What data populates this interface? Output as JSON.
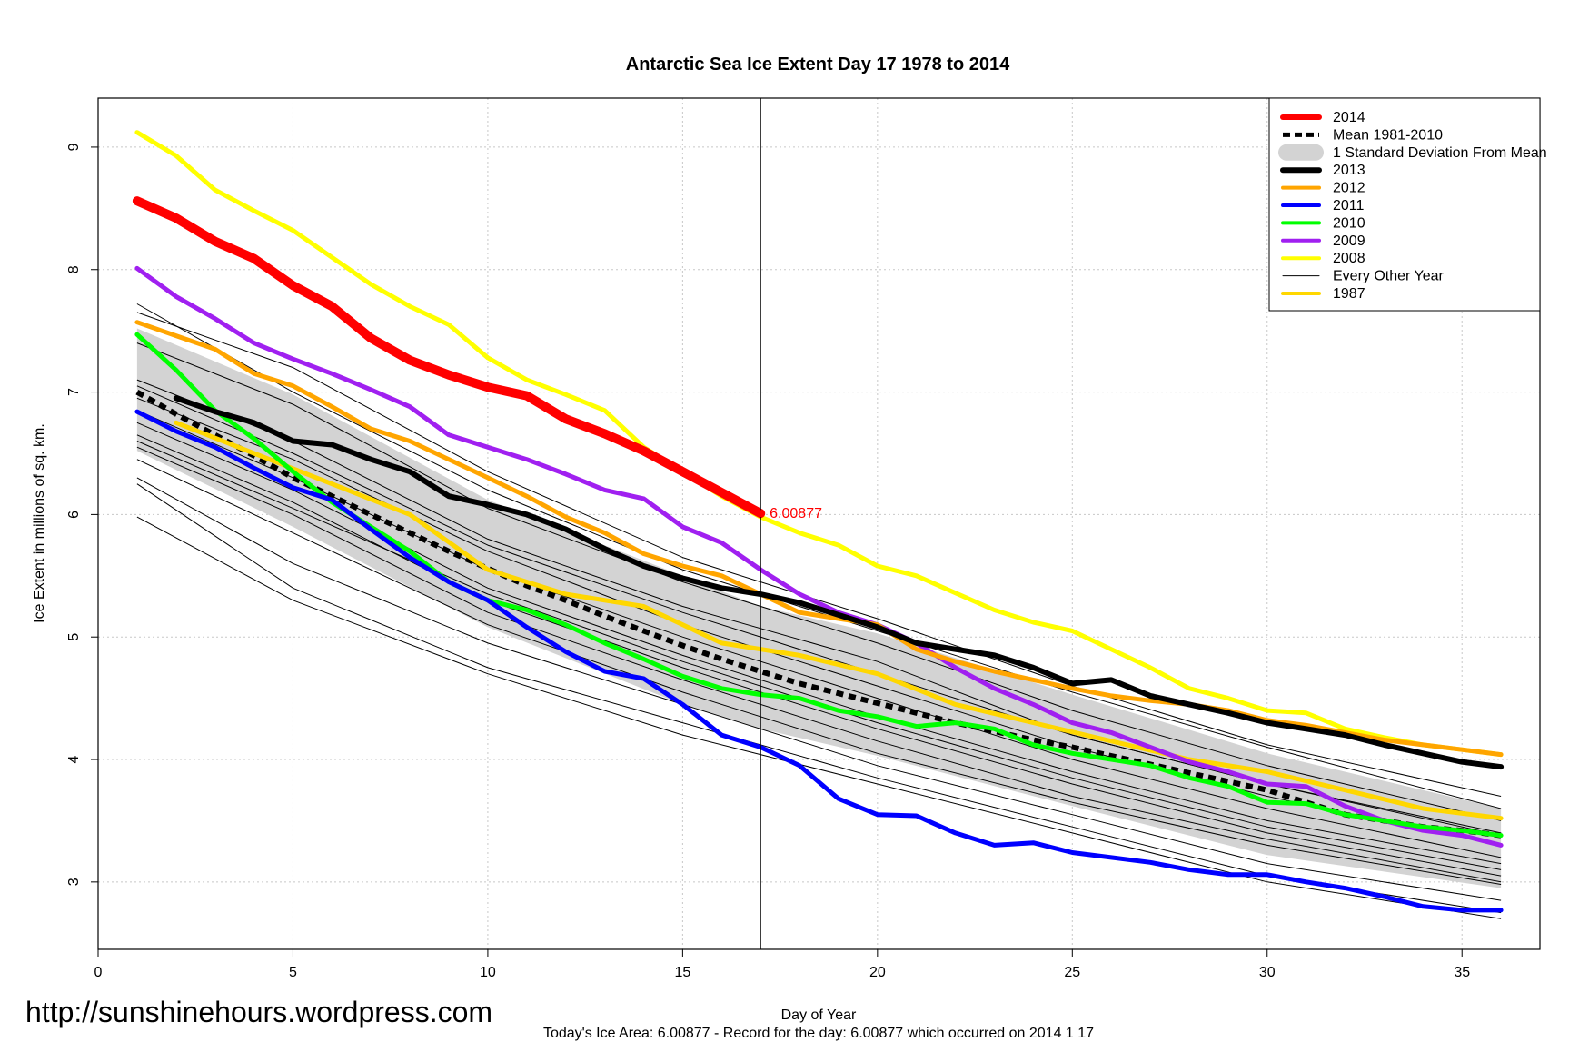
{
  "chart_data": {
    "type": "line",
    "title": "Antarctic Sea Ice Extent Day 17 1978 to 2014",
    "xlabel": "Day of Year",
    "ylabel": "Ice Extent in millions of sq. km.",
    "subtitle": "Today's Ice Area: 6.00877  - Record for the day: 6.00877 which occurred on 2014 1 17",
    "watermark": "http://sunshinehours.wordpress.com",
    "xlim": [
      0,
      37
    ],
    "ylim": [
      2.45,
      9.4
    ],
    "x_ticks": [
      0,
      5,
      10,
      15,
      20,
      25,
      30,
      35
    ],
    "y_ticks": [
      3,
      4,
      5,
      6,
      7,
      8,
      9
    ],
    "grid": true,
    "vline_day": 17,
    "annotation": {
      "text": "6.00877",
      "x": 17,
      "y": 6.00877,
      "color": "#ff0000"
    },
    "legend_position": "top-right",
    "legend": [
      {
        "label": "2014",
        "color": "#ff0000",
        "style": "thick"
      },
      {
        "label": "Mean 1981-2010",
        "color": "#000000",
        "style": "dashed"
      },
      {
        "label": "1 Standard Deviation From Mean",
        "color": "#d3d3d3",
        "style": "band"
      },
      {
        "label": "2013",
        "color": "#000000",
        "style": "thick"
      },
      {
        "label": "2012",
        "color": "#ffa500",
        "style": "medium"
      },
      {
        "label": "2011",
        "color": "#0000ff",
        "style": "medium"
      },
      {
        "label": "2010",
        "color": "#00ff00",
        "style": "medium"
      },
      {
        "label": "2009",
        "color": "#a020f0",
        "style": "medium"
      },
      {
        "label": "2008",
        "color": "#ffff00",
        "style": "medium"
      },
      {
        "label": "Every Other Year",
        "color": "#000000",
        "style": "thin"
      },
      {
        "label": "1987",
        "color": "#ffd700",
        "style": "medium"
      }
    ],
    "sd_band": {
      "x": [
        1,
        5,
        10,
        15,
        17,
        20,
        25,
        30,
        36
      ],
      "upper": [
        7.52,
        6.98,
        6.12,
        5.5,
        5.25,
        5.03,
        4.53,
        4.05,
        3.6
      ],
      "lower": [
        6.52,
        5.9,
        5.08,
        4.45,
        4.25,
        4.03,
        3.62,
        3.22,
        2.95
      ]
    },
    "thin_years": [
      {
        "x": [
          1,
          5,
          10,
          15,
          20,
          25,
          30,
          36
        ],
        "values": [
          7.72,
          7.0,
          6.2,
          5.55,
          5.05,
          4.55,
          4.1,
          3.6
        ]
      },
      {
        "x": [
          1,
          5,
          10,
          15,
          20,
          25,
          30,
          36
        ],
        "values": [
          7.65,
          7.2,
          6.35,
          5.65,
          5.15,
          4.6,
          4.12,
          3.7
        ]
      },
      {
        "x": [
          1,
          5,
          10,
          15,
          20,
          25,
          30,
          36
        ],
        "values": [
          7.4,
          6.9,
          6.05,
          5.45,
          4.95,
          4.4,
          3.95,
          3.5
        ]
      },
      {
        "x": [
          1,
          5,
          10,
          15,
          20,
          25,
          30,
          36
        ],
        "values": [
          7.1,
          6.6,
          5.8,
          5.25,
          4.8,
          4.2,
          3.8,
          3.4
        ]
      },
      {
        "x": [
          1,
          5,
          10,
          15,
          20,
          25,
          30,
          36
        ],
        "values": [
          6.95,
          6.45,
          5.7,
          5.1,
          4.6,
          4.1,
          3.7,
          3.3
        ]
      },
      {
        "x": [
          1,
          5,
          10,
          15,
          20,
          25,
          30,
          36
        ],
        "values": [
          6.85,
          6.3,
          5.55,
          5.0,
          4.5,
          4.0,
          3.6,
          3.2
        ]
      },
      {
        "x": [
          1,
          5,
          10,
          15,
          20,
          25,
          30,
          36
        ],
        "values": [
          6.75,
          6.2,
          5.4,
          4.85,
          4.35,
          3.9,
          3.5,
          3.15
        ]
      },
      {
        "x": [
          1,
          5,
          10,
          15,
          20,
          25,
          30,
          36
        ],
        "values": [
          6.65,
          6.1,
          5.3,
          4.75,
          4.25,
          3.8,
          3.4,
          3.05
        ]
      },
      {
        "x": [
          1,
          5,
          10,
          15,
          20,
          25,
          30,
          36
        ],
        "values": [
          6.55,
          6.0,
          5.2,
          4.65,
          4.15,
          3.7,
          3.35,
          3.0
        ]
      },
      {
        "x": [
          1,
          5,
          10,
          15,
          20,
          25,
          30,
          36
        ],
        "values": [
          6.45,
          5.85,
          5.1,
          4.55,
          4.05,
          3.65,
          3.3,
          2.98
        ]
      },
      {
        "x": [
          1,
          5,
          10,
          15,
          20,
          25,
          30,
          36
        ],
        "values": [
          6.3,
          5.6,
          4.95,
          4.45,
          3.95,
          3.55,
          3.15,
          2.85
        ]
      },
      {
        "x": [
          1,
          5,
          10,
          15,
          20,
          25,
          30,
          36
        ],
        "values": [
          6.25,
          5.4,
          4.75,
          4.3,
          3.85,
          3.45,
          3.05,
          2.75
        ]
      },
      {
        "x": [
          1,
          5,
          10,
          15,
          20,
          25,
          30,
          36
        ],
        "values": [
          5.98,
          5.3,
          4.7,
          4.2,
          3.8,
          3.4,
          3.0,
          2.7
        ]
      },
      {
        "x": [
          1,
          5,
          10,
          15,
          20,
          25,
          30,
          36
        ],
        "values": [
          7.05,
          6.5,
          5.75,
          5.2,
          4.7,
          4.2,
          3.8,
          3.38
        ]
      },
      {
        "x": [
          1,
          5,
          10,
          15,
          20,
          25,
          30,
          36
        ],
        "values": [
          6.6,
          6.05,
          5.35,
          4.8,
          4.3,
          3.85,
          3.45,
          3.1
        ]
      }
    ],
    "series": [
      {
        "name": "Mean 1981-2010",
        "color": "#000000",
        "width": 6,
        "dash": "8,6",
        "x": [
          1,
          2,
          3,
          4,
          5,
          6,
          7,
          8,
          9,
          10,
          11,
          12,
          13,
          14,
          15,
          16,
          17,
          18,
          19,
          20,
          21,
          22,
          23,
          24,
          25,
          26,
          27,
          28,
          29,
          30,
          31,
          32,
          33,
          34,
          35,
          36
        ],
        "values": [
          7.0,
          6.82,
          6.65,
          6.48,
          6.3,
          6.15,
          6.0,
          5.85,
          5.7,
          5.56,
          5.42,
          5.3,
          5.17,
          5.05,
          4.93,
          4.82,
          4.72,
          4.62,
          4.54,
          4.46,
          4.38,
          4.3,
          4.23,
          4.16,
          4.1,
          4.03,
          3.96,
          3.89,
          3.82,
          3.75,
          3.65,
          3.55,
          3.5,
          3.45,
          3.42,
          3.38
        ]
      },
      {
        "name": "1987",
        "color": "#ffd700",
        "width": 5,
        "x": [
          2,
          4,
          6,
          8,
          10,
          12,
          14,
          16,
          18,
          20,
          22,
          24,
          26,
          28,
          30,
          32,
          34,
          36
        ],
        "values": [
          6.75,
          6.5,
          6.25,
          6.0,
          5.55,
          5.35,
          5.25,
          4.95,
          4.85,
          4.7,
          4.45,
          4.3,
          4.15,
          4.0,
          3.9,
          3.75,
          3.6,
          3.52
        ]
      },
      {
        "name": "2008",
        "color": "#ffff00",
        "width": 5,
        "x": [
          1,
          2,
          3,
          4,
          5,
          6,
          7,
          8,
          9,
          10,
          11,
          12,
          13,
          14,
          15,
          16,
          17,
          18,
          19,
          20,
          21,
          22,
          23,
          24,
          25,
          26,
          27,
          28,
          29,
          30,
          31,
          32,
          33,
          34,
          35,
          36
        ],
        "values": [
          9.12,
          8.93,
          8.65,
          8.48,
          8.32,
          8.1,
          7.88,
          7.7,
          7.55,
          7.28,
          7.1,
          6.98,
          6.85,
          6.55,
          6.35,
          6.15,
          5.98,
          5.85,
          5.75,
          5.58,
          5.5,
          5.36,
          5.22,
          5.12,
          5.05,
          4.9,
          4.75,
          4.58,
          4.5,
          4.4,
          4.38,
          4.25,
          4.18,
          4.12,
          4.08,
          4.04
        ]
      },
      {
        "name": "2009",
        "color": "#a020f0",
        "width": 5,
        "x": [
          1,
          2,
          3,
          4,
          5,
          6,
          7,
          8,
          9,
          10,
          11,
          12,
          13,
          14,
          15,
          16,
          17,
          18,
          19,
          20,
          21,
          22,
          23,
          24,
          25,
          26,
          27,
          28,
          29,
          30,
          31,
          32,
          33,
          34,
          35,
          36
        ],
        "values": [
          8.01,
          7.78,
          7.6,
          7.4,
          7.27,
          7.15,
          7.02,
          6.88,
          6.65,
          6.55,
          6.45,
          6.33,
          6.2,
          6.13,
          5.9,
          5.77,
          5.55,
          5.35,
          5.2,
          5.1,
          4.95,
          4.75,
          4.58,
          4.45,
          4.3,
          4.22,
          4.1,
          3.98,
          3.9,
          3.8,
          3.78,
          3.62,
          3.5,
          3.42,
          3.38,
          3.3
        ]
      },
      {
        "name": "2010",
        "color": "#00ff00",
        "width": 5,
        "x": [
          1,
          2,
          3,
          4,
          5,
          6,
          7,
          8,
          9,
          10,
          11,
          12,
          13,
          14,
          15,
          16,
          17,
          18,
          19,
          20,
          21,
          22,
          23,
          24,
          25,
          26,
          27,
          28,
          29,
          30,
          31,
          32,
          33,
          34,
          35,
          36
        ],
        "values": [
          7.47,
          7.18,
          6.85,
          6.62,
          6.35,
          6.1,
          5.9,
          5.7,
          5.45,
          5.3,
          5.22,
          5.1,
          4.95,
          4.82,
          4.68,
          4.58,
          4.53,
          4.5,
          4.4,
          4.35,
          4.27,
          4.3,
          4.25,
          4.12,
          4.05,
          4.0,
          3.95,
          3.85,
          3.78,
          3.65,
          3.64,
          3.55,
          3.5,
          3.45,
          3.42,
          3.38
        ]
      },
      {
        "name": "2011",
        "color": "#0000ff",
        "width": 5,
        "x": [
          1,
          2,
          3,
          4,
          5,
          6,
          7,
          8,
          9,
          10,
          11,
          12,
          13,
          14,
          15,
          16,
          17,
          18,
          19,
          20,
          21,
          22,
          23,
          24,
          25,
          26,
          27,
          28,
          29,
          30,
          31,
          32,
          33,
          34,
          35,
          36
        ],
        "values": [
          6.84,
          6.68,
          6.55,
          6.38,
          6.22,
          6.12,
          5.88,
          5.65,
          5.45,
          5.3,
          5.08,
          4.88,
          4.72,
          4.66,
          4.45,
          4.2,
          4.1,
          3.95,
          3.68,
          3.55,
          3.54,
          3.4,
          3.3,
          3.32,
          3.24,
          3.2,
          3.16,
          3.1,
          3.06,
          3.06,
          3.0,
          2.95,
          2.88,
          2.8,
          2.77,
          2.77
        ]
      },
      {
        "name": "2012",
        "color": "#ffa500",
        "width": 5,
        "x": [
          1,
          2,
          3,
          4,
          5,
          6,
          7,
          8,
          9,
          10,
          11,
          12,
          13,
          14,
          15,
          16,
          17,
          18,
          19,
          20,
          21,
          22,
          23,
          24,
          25,
          26,
          27,
          28,
          29,
          30,
          31,
          32,
          33,
          34,
          35,
          36
        ],
        "values": [
          7.57,
          7.46,
          7.35,
          7.15,
          7.05,
          6.88,
          6.7,
          6.6,
          6.45,
          6.3,
          6.15,
          5.98,
          5.85,
          5.68,
          5.58,
          5.5,
          5.35,
          5.2,
          5.15,
          5.1,
          4.9,
          4.8,
          4.72,
          4.65,
          4.58,
          4.52,
          4.48,
          4.45,
          4.4,
          4.32,
          4.28,
          4.22,
          4.16,
          4.12,
          4.08,
          4.04
        ]
      },
      {
        "name": "2013",
        "color": "#000000",
        "width": 6,
        "x": [
          2,
          3,
          4,
          5,
          6,
          7,
          8,
          9,
          10,
          11,
          12,
          13,
          14,
          15,
          16,
          17,
          18,
          19,
          20,
          21,
          22,
          23,
          24,
          25,
          26,
          27,
          28,
          29,
          30,
          31,
          32,
          33,
          34,
          35,
          36
        ],
        "values": [
          6.95,
          6.84,
          6.75,
          6.6,
          6.57,
          6.45,
          6.35,
          6.15,
          6.08,
          6.0,
          5.88,
          5.72,
          5.58,
          5.48,
          5.4,
          5.35,
          5.28,
          5.18,
          5.08,
          4.95,
          4.9,
          4.85,
          4.75,
          4.62,
          4.65,
          4.52,
          4.45,
          4.38,
          4.3,
          4.25,
          4.2,
          4.12,
          4.05,
          3.98,
          3.94
        ]
      },
      {
        "name": "2014",
        "color": "#ff0000",
        "width": 10,
        "x": [
          1,
          2,
          3,
          4,
          5,
          6,
          7,
          8,
          9,
          10,
          11,
          12,
          13,
          14,
          15,
          16,
          17
        ],
        "values": [
          8.56,
          8.42,
          8.23,
          8.09,
          7.87,
          7.7,
          7.44,
          7.26,
          7.14,
          7.04,
          6.97,
          6.78,
          6.66,
          6.52,
          6.35,
          6.18,
          6.00877
        ]
      }
    ]
  }
}
